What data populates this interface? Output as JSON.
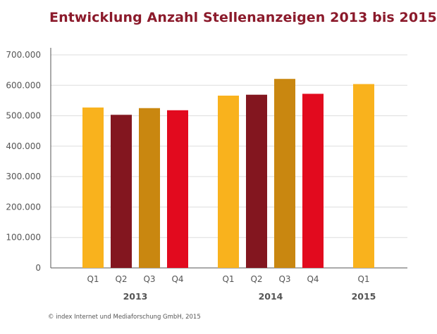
{
  "title": "Entwicklung Anzahl Stellenanzeigen 2013 bis 2015",
  "footer": "© index Internet und Mediaforschung GmbH, 2015",
  "colors": {
    "title": "#8b1a2b",
    "gold": "#f9b21d",
    "maroon": "#83161f",
    "amber": "#c98710",
    "red": "#e20a1e",
    "grid": "#dddddd",
    "axis": "#555555"
  },
  "chart_data": {
    "type": "bar",
    "title": "Entwicklung Anzahl Stellenanzeigen 2013 bis 2015",
    "xlabel": "",
    "ylabel": "",
    "ylim": [
      0,
      700000
    ],
    "yticks": [
      0,
      100000,
      200000,
      300000,
      400000,
      500000,
      600000,
      700000
    ],
    "ytick_labels": [
      "0",
      "100.000",
      "200.000",
      "300.000",
      "400.000",
      "500.000",
      "600.000",
      "700.000"
    ],
    "grid": true,
    "groups": [
      {
        "year": "2013",
        "bars": [
          {
            "quarter": "Q1",
            "value": 527000,
            "color": "#f9b21d"
          },
          {
            "quarter": "Q2",
            "value": 503000,
            "color": "#83161f"
          },
          {
            "quarter": "Q3",
            "value": 525000,
            "color": "#c98710"
          },
          {
            "quarter": "Q4",
            "value": 518000,
            "color": "#e20a1e"
          }
        ]
      },
      {
        "year": "2014",
        "bars": [
          {
            "quarter": "Q1",
            "value": 566000,
            "color": "#f9b21d"
          },
          {
            "quarter": "Q2",
            "value": 569000,
            "color": "#83161f"
          },
          {
            "quarter": "Q3",
            "value": 621000,
            "color": "#c98710"
          },
          {
            "quarter": "Q4",
            "value": 572000,
            "color": "#e20a1e"
          }
        ]
      },
      {
        "year": "2015",
        "bars": [
          {
            "quarter": "Q1",
            "value": 604000,
            "color": "#f9b21d"
          }
        ]
      }
    ]
  }
}
